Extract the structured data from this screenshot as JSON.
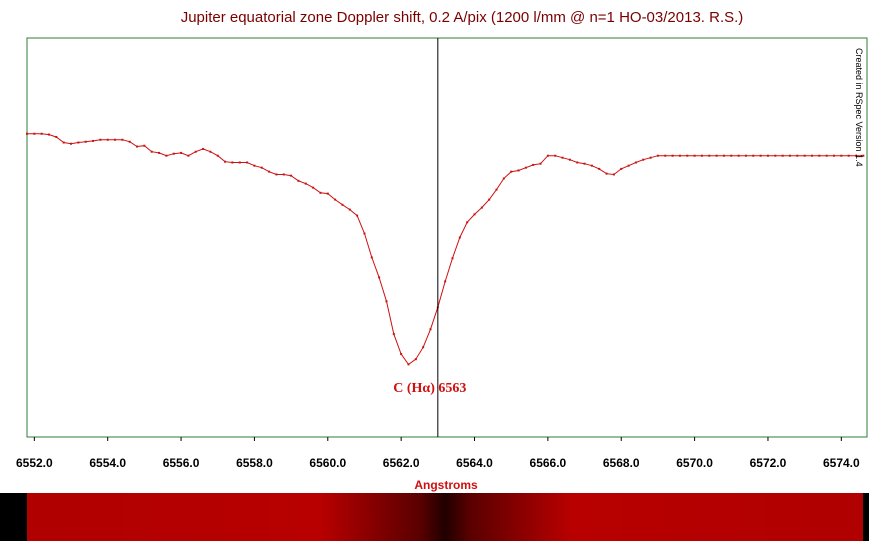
{
  "chart_data": {
    "type": "line",
    "title": "Jupiter equatorial zone Doppler shift, 0.2 A/pix (1200 l/mm @ n=1 HO-03/2013. R.S.)",
    "xlabel": "Angstroms",
    "ylabel": "",
    "xlim": [
      6551.8,
      6574.7
    ],
    "ylim": [
      0.0,
      1.0
    ],
    "x_ticks": [
      "6552.0",
      "6554.0",
      "6556.0",
      "6558.0",
      "6560.0",
      "6562.0",
      "6564.0",
      "6566.0",
      "6568.0",
      "6570.0",
      "6572.0",
      "6574.0"
    ],
    "x_tick_values": [
      6552,
      6554,
      6556,
      6558,
      6560,
      6562,
      6564,
      6566,
      6568,
      6570,
      6572,
      6574
    ],
    "grid": false,
    "credit": "Created in RSpec Version 1.4",
    "marker_line": {
      "x": 6563.0,
      "label": "C (Hα) 6563"
    },
    "colors": {
      "line": "#cc1111",
      "frame": "#2e7d32",
      "title": "#7a0000",
      "annotation": "#d01010"
    },
    "series": [
      {
        "x": [
          6551.8,
          6552.0,
          6552.2,
          6552.4,
          6552.6,
          6552.8,
          6553.0,
          6553.2,
          6553.4,
          6553.6,
          6553.8,
          6554.0,
          6554.2,
          6554.4,
          6554.6,
          6554.8,
          6555.0,
          6555.2,
          6555.4,
          6555.6,
          6555.8,
          6556.0,
          6556.2,
          6556.4,
          6556.6,
          6556.8,
          6557.0,
          6557.2,
          6557.4,
          6557.6,
          6557.8,
          6558.0,
          6558.2,
          6558.4,
          6558.6,
          6558.8,
          6559.0,
          6559.2,
          6559.4,
          6559.6,
          6559.8,
          6560.0,
          6560.2,
          6560.4,
          6560.6,
          6560.8,
          6561.0,
          6561.2,
          6561.4,
          6561.6,
          6561.8,
          6562.0,
          6562.2,
          6562.4,
          6562.6,
          6562.8,
          6563.0,
          6563.2,
          6563.4,
          6563.6,
          6563.8,
          6564.0,
          6564.2,
          6564.4,
          6564.6,
          6564.8,
          6565.0,
          6565.2,
          6565.4,
          6565.6,
          6565.8,
          6566.0,
          6566.2,
          6566.4,
          6566.6,
          6566.8,
          6567.0,
          6567.2,
          6567.4,
          6567.6,
          6567.8,
          6568.0,
          6568.2,
          6568.4,
          6568.6,
          6568.8,
          6569.0,
          6569.2,
          6569.4,
          6569.6,
          6569.8,
          6570.0,
          6570.2,
          6570.4,
          6570.6,
          6570.8,
          6571.0,
          6571.2,
          6571.4,
          6571.6,
          6571.8,
          6572.0,
          6572.2,
          6572.4,
          6572.6,
          6572.8,
          6573.0,
          6573.2,
          6573.4,
          6573.6,
          6573.8,
          6574.0,
          6574.2,
          6574.4,
          6574.6
        ],
        "y": [
          0.76,
          0.76,
          0.76,
          0.758,
          0.752,
          0.738,
          0.735,
          0.738,
          0.74,
          0.742,
          0.745,
          0.745,
          0.745,
          0.745,
          0.74,
          0.728,
          0.73,
          0.715,
          0.712,
          0.705,
          0.71,
          0.712,
          0.705,
          0.715,
          0.722,
          0.715,
          0.705,
          0.69,
          0.688,
          0.688,
          0.688,
          0.68,
          0.675,
          0.665,
          0.658,
          0.658,
          0.655,
          0.642,
          0.635,
          0.625,
          0.612,
          0.61,
          0.595,
          0.582,
          0.57,
          0.555,
          0.51,
          0.45,
          0.4,
          0.34,
          0.258,
          0.208,
          0.182,
          0.195,
          0.225,
          0.27,
          0.325,
          0.39,
          0.448,
          0.5,
          0.538,
          0.558,
          0.575,
          0.595,
          0.62,
          0.648,
          0.665,
          0.668,
          0.675,
          0.682,
          0.685,
          0.705,
          0.705,
          0.7,
          0.695,
          0.688,
          0.685,
          0.68,
          0.672,
          0.66,
          0.658,
          0.672,
          0.68,
          0.688,
          0.695,
          0.7,
          0.705,
          0.705,
          0.705,
          0.705,
          0.705,
          0.705,
          0.705,
          0.705,
          0.705,
          0.705,
          0.705,
          0.705,
          0.705,
          0.705,
          0.705,
          0.705,
          0.705,
          0.705,
          0.705,
          0.705,
          0.705,
          0.705,
          0.705,
          0.705,
          0.705,
          0.705,
          0.705,
          0.705,
          0.705
        ]
      }
    ]
  }
}
